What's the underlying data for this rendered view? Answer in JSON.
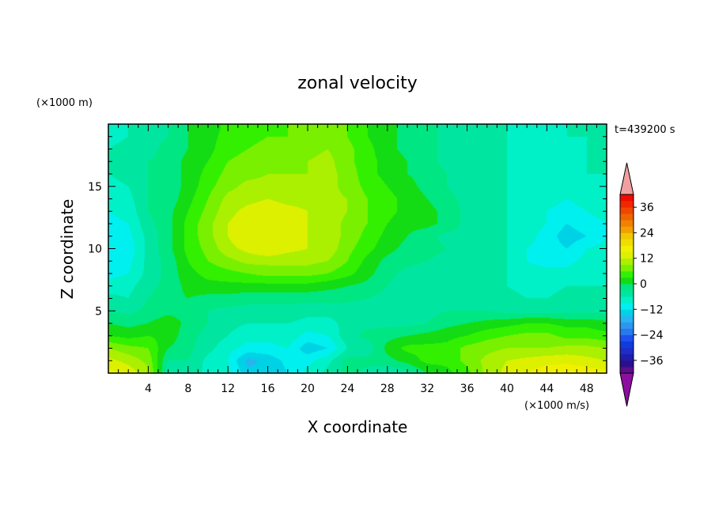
{
  "chart_data": {
    "type": "heatmap",
    "title": "zonal velocity",
    "xlabel": "X coordinate",
    "ylabel": "Z coordinate",
    "x_unit": "(×1000 m/s)",
    "y_unit": "(×1000 m)",
    "time_label": "t=439200 s",
    "xlim": [
      0,
      50
    ],
    "ylim": [
      0,
      20
    ],
    "x_ticks": [
      4,
      8,
      12,
      16,
      20,
      24,
      28,
      32,
      36,
      40,
      44,
      48
    ],
    "y_ticks": [
      5,
      10,
      15
    ],
    "colorbar": {
      "levels": [
        -42,
        -39,
        -36,
        -33,
        -30,
        -27,
        -24,
        -21,
        -18,
        -15,
        -12,
        -9,
        -6,
        -3,
        0,
        3,
        6,
        9,
        12,
        15,
        18,
        21,
        24,
        27,
        30,
        33,
        36,
        39,
        42
      ],
      "tick_values": [
        -36,
        -24,
        -12,
        0,
        12,
        24,
        36
      ],
      "tick_labels": [
        "−36",
        "−24",
        "−12",
        "0",
        "12",
        "24",
        "36"
      ],
      "colors": [
        "#5a0f8c",
        "#2d0f8c",
        "#1e1eaa",
        "#1e2dc8",
        "#0f3cdc",
        "#1e50f0",
        "#2878f0",
        "#2d96f0",
        "#28b4f0",
        "#00d2e6",
        "#00f0f0",
        "#00f0c8",
        "#00e6a0",
        "#00e682",
        "#14dc14",
        "#32f000",
        "#78f000",
        "#aaf000",
        "#dcf000",
        "#f0f000",
        "#f0dc00",
        "#f0c800",
        "#f0a000",
        "#f08200",
        "#f06400",
        "#f04600",
        "#f02800",
        "#f00a00"
      ],
      "under_color": "#8c0fa0",
      "over_color": "#f0a0a0"
    },
    "field": {
      "x_nodes": [
        0,
        2,
        4,
        6,
        8,
        10,
        12,
        14,
        16,
        18,
        20,
        22,
        24,
        26,
        28,
        30,
        32,
        34,
        36,
        38,
        40,
        42,
        44,
        46,
        48,
        50
      ],
      "z_nodes": [
        0,
        1,
        2,
        3,
        4,
        5,
        6,
        7,
        8,
        9,
        10,
        11,
        12,
        13,
        14,
        15,
        16,
        17,
        18,
        19,
        20
      ],
      "values": [
        [
          16,
          14,
          10,
          -5,
          -4,
          -7,
          -8,
          -14,
          -15,
          -12,
          -8,
          -5,
          -2,
          -4,
          -6,
          -4,
          0,
          2,
          5,
          10,
          13,
          15,
          17,
          18,
          17,
          16
        ],
        [
          13,
          11,
          8,
          -3,
          -3,
          -7,
          -9,
          -16,
          -14,
          -11,
          -10,
          -7,
          -2,
          -2,
          -1,
          1,
          4,
          4,
          7,
          10,
          12,
          13,
          14,
          14,
          13,
          12
        ],
        [
          9,
          7,
          6,
          0,
          -2,
          -5,
          -8,
          -10,
          -10,
          -9,
          -14,
          -12,
          -6,
          -5,
          1,
          4,
          4,
          4,
          7,
          8,
          9,
          9,
          9,
          10,
          10,
          9
        ],
        [
          3,
          2,
          3,
          2,
          -2,
          -4,
          -6,
          -8,
          -8,
          -7,
          -10,
          -9,
          -4,
          -2,
          -1,
          0,
          1,
          2,
          3,
          5,
          6,
          7,
          7,
          5,
          5,
          4
        ],
        [
          0,
          -1,
          0,
          2,
          -1,
          -3,
          -5,
          -6,
          -6,
          -6,
          -7,
          -7,
          -5,
          -4,
          -4,
          -4,
          -3,
          -1,
          0,
          1,
          2,
          3,
          3,
          2,
          2,
          1
        ],
        [
          -3,
          -4,
          -2,
          -1,
          -1,
          -3,
          -4,
          -4,
          -4,
          -4,
          -5,
          -5,
          -5,
          -5,
          -5,
          -5,
          -4,
          -3,
          -3,
          -3,
          -4,
          -4,
          -4,
          -4,
          -4,
          -4
        ],
        [
          -5,
          -6,
          -3,
          -1,
          0,
          -1,
          -1,
          -2,
          -2,
          -2,
          -2,
          -2,
          -2,
          -3,
          -4,
          -5,
          -6,
          -5,
          -5,
          -5,
          -5,
          -6,
          -6,
          -5,
          -5,
          -5
        ],
        [
          -8,
          -7,
          -4,
          -2,
          1,
          2,
          2,
          2,
          2,
          2,
          2,
          1,
          0,
          -1,
          -3,
          -5,
          -6,
          -6,
          -5,
          -5,
          -6,
          -7,
          -7,
          -6,
          -6,
          -6
        ],
        [
          -10,
          -9,
          -5,
          -2,
          2,
          4,
          5,
          6,
          7,
          7,
          7,
          6,
          4,
          1,
          -2,
          -4,
          -5,
          -5,
          -4,
          -4,
          -6,
          -8,
          -8,
          -8,
          -7,
          -7
        ],
        [
          -11,
          -10,
          -5,
          -2,
          3,
          6,
          8,
          10,
          10,
          10,
          10,
          9,
          6,
          2,
          -1,
          -2,
          -3,
          -4,
          -4,
          -4,
          -6,
          -9,
          -10,
          -10,
          -8,
          -8
        ],
        [
          -12,
          -11,
          -5,
          -1,
          4,
          7,
          11,
          13,
          15,
          13,
          12,
          11,
          7,
          4,
          1,
          -1,
          -2,
          -3,
          -4,
          -4,
          -6,
          -9,
          -10,
          -12,
          -9,
          -8
        ],
        [
          -11,
          -10,
          -5,
          -1,
          4,
          8,
          12,
          15,
          15,
          13,
          12,
          11,
          8,
          5,
          2,
          0,
          -2,
          -4,
          -4,
          -4,
          -6,
          -8,
          -10,
          -14,
          -12,
          -9
        ],
        [
          -10,
          -9,
          -4,
          -1,
          4,
          8,
          12,
          14,
          14,
          12,
          12,
          11,
          8,
          6,
          3,
          1,
          1,
          -1,
          -4,
          -4,
          -6,
          -8,
          -9,
          -12,
          -10,
          -9
        ],
        [
          -9,
          -8,
          -3,
          -1,
          3,
          7,
          11,
          13,
          14,
          13,
          12,
          11,
          9,
          6,
          4,
          2,
          1,
          -1,
          -4,
          -4,
          -6,
          -8,
          -9,
          -10,
          -9,
          -8
        ],
        [
          -8,
          -7,
          -3,
          -2,
          2,
          6,
          10,
          11,
          12,
          11,
          11,
          10,
          9,
          6,
          4,
          2,
          0,
          -2,
          -4,
          -5,
          -6,
          -8,
          -8,
          -9,
          -8,
          -7
        ],
        [
          -7,
          -6,
          -3,
          -2,
          1,
          5,
          8,
          10,
          10,
          10,
          10,
          10,
          8,
          5,
          3,
          1,
          -1,
          -3,
          -5,
          -5,
          -6,
          -7,
          -7,
          -8,
          -7,
          -6
        ],
        [
          -6,
          -5,
          -3,
          -2,
          1,
          4,
          7,
          8,
          9,
          9,
          9,
          10,
          8,
          4,
          2,
          0,
          -1,
          -3,
          -5,
          -5,
          -6,
          -6,
          -7,
          -7,
          -6,
          -6
        ],
        [
          -6,
          -5,
          -3,
          -2,
          1,
          3,
          6,
          7,
          8,
          8,
          9,
          10,
          7,
          4,
          2,
          0,
          -2,
          -4,
          -5,
          -5,
          -6,
          -7,
          -7,
          -7,
          -6,
          -5
        ],
        [
          -6,
          -5,
          -4,
          -2,
          0,
          2,
          5,
          6,
          7,
          7,
          8,
          9,
          7,
          4,
          1,
          -1,
          -2,
          -4,
          -5,
          -5,
          -6,
          -7,
          -7,
          -7,
          -6,
          -5
        ],
        [
          -7,
          -6,
          -4,
          -3,
          0,
          2,
          4,
          5,
          6,
          6,
          7,
          8,
          6,
          3,
          1,
          -1,
          -2,
          -4,
          -5,
          -5,
          -6,
          -7,
          -7,
          -6,
          -6,
          -5
        ],
        [
          -7,
          -6,
          -4,
          -3,
          0,
          1,
          4,
          5,
          5,
          6,
          7,
          8,
          6,
          3,
          1,
          -1,
          -2,
          -4,
          -5,
          -5,
          -6,
          -7,
          -7,
          -6,
          -6,
          -5
        ]
      ]
    }
  }
}
